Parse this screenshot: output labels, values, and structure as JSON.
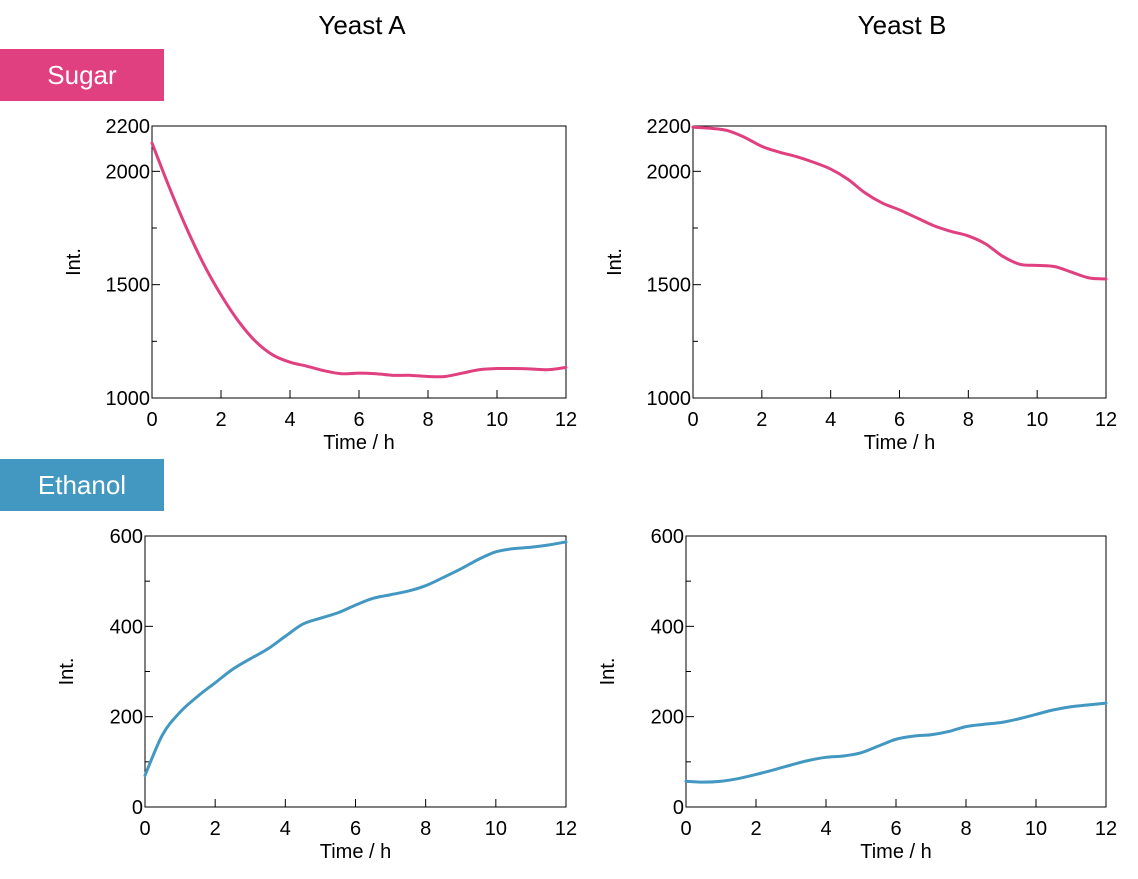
{
  "columns": [
    "Yeast A",
    "Yeast B"
  ],
  "rows": [
    {
      "label": "Sugar",
      "color": "#e0407f"
    },
    {
      "label": "Ethanol",
      "color": "#4398c2"
    }
  ],
  "chart_data": [
    {
      "type": "line",
      "column": "Yeast A",
      "row": "Sugar",
      "xlabel": "Time / h",
      "ylabel": "Int.",
      "xlim": [
        0,
        12
      ],
      "ylim": [
        1000,
        2200
      ],
      "xticks": [
        0,
        2,
        4,
        6,
        8,
        10,
        12
      ],
      "yticks": [
        1000,
        1500,
        2000,
        2200
      ],
      "minor_yticks": [
        1250,
        1750
      ],
      "color": "#e0407f",
      "x": [
        0,
        0.5,
        1,
        1.5,
        2,
        2.5,
        3,
        3.5,
        4,
        4.5,
        5,
        5.5,
        6,
        6.5,
        7,
        7.5,
        8,
        8.5,
        9,
        9.5,
        10,
        10.5,
        11,
        11.5,
        12
      ],
      "y": [
        2125,
        1930,
        1750,
        1590,
        1455,
        1340,
        1250,
        1190,
        1158,
        1140,
        1120,
        1107,
        1110,
        1107,
        1100,
        1100,
        1095,
        1095,
        1110,
        1125,
        1130,
        1130,
        1128,
        1125,
        1135
      ]
    },
    {
      "type": "line",
      "column": "Yeast B",
      "row": "Sugar",
      "xlabel": "Time / h",
      "ylabel": "Int.",
      "xlim": [
        0,
        12
      ],
      "ylim": [
        1000,
        2200
      ],
      "xticks": [
        0,
        2,
        4,
        6,
        8,
        10,
        12
      ],
      "yticks": [
        1000,
        1500,
        2000,
        2200
      ],
      "minor_yticks": [
        1250,
        1750
      ],
      "color": "#e0407f",
      "x": [
        0,
        0.5,
        1,
        1.5,
        2,
        2.5,
        3,
        3.5,
        4,
        4.5,
        5,
        5.5,
        6,
        6.5,
        7,
        7.5,
        8,
        8.5,
        9,
        9.5,
        10,
        10.5,
        11,
        11.5,
        12
      ],
      "y": [
        2195,
        2190,
        2180,
        2150,
        2110,
        2085,
        2065,
        2040,
        2010,
        1965,
        1905,
        1860,
        1830,
        1795,
        1760,
        1735,
        1715,
        1680,
        1625,
        1590,
        1585,
        1580,
        1555,
        1530,
        1525
      ]
    },
    {
      "type": "line",
      "column": "Yeast A",
      "row": "Ethanol",
      "xlabel": "Time / h",
      "ylabel": "Int.",
      "xlim": [
        0,
        12
      ],
      "ylim": [
        0,
        600
      ],
      "xticks": [
        0,
        2,
        4,
        6,
        8,
        10,
        12
      ],
      "yticks": [
        0,
        200,
        400,
        600
      ],
      "minor_yticks": [
        100,
        300,
        500
      ],
      "color": "#4398c2",
      "x": [
        0,
        0.5,
        1,
        1.5,
        2,
        2.5,
        3,
        3.5,
        4,
        4.5,
        5,
        5.5,
        6,
        6.5,
        7,
        7.5,
        8,
        8.5,
        9,
        9.5,
        10,
        10.5,
        11,
        11.5,
        12
      ],
      "y": [
        70,
        160,
        210,
        245,
        275,
        305,
        328,
        350,
        378,
        405,
        418,
        430,
        447,
        462,
        470,
        478,
        490,
        508,
        527,
        548,
        565,
        572,
        575,
        580,
        587
      ]
    },
    {
      "type": "line",
      "column": "Yeast B",
      "row": "Ethanol",
      "xlabel": "Time / h",
      "ylabel": "Int.",
      "xlim": [
        0,
        12
      ],
      "ylim": [
        0,
        600
      ],
      "xticks": [
        0,
        2,
        4,
        6,
        8,
        10,
        12
      ],
      "yticks": [
        0,
        200,
        400,
        600
      ],
      "minor_yticks": [
        100,
        300,
        500
      ],
      "color": "#4398c2",
      "x": [
        0,
        0.5,
        1,
        1.5,
        2,
        2.5,
        3,
        3.5,
        4,
        4.5,
        5,
        5.5,
        6,
        6.5,
        7,
        7.5,
        8,
        8.5,
        9,
        9.5,
        10,
        10.5,
        11,
        11.5,
        12
      ],
      "y": [
        57,
        55,
        57,
        63,
        72,
        82,
        93,
        103,
        110,
        113,
        120,
        135,
        150,
        157,
        160,
        167,
        178,
        183,
        187,
        195,
        205,
        215,
        222,
        226,
        230
      ]
    }
  ]
}
